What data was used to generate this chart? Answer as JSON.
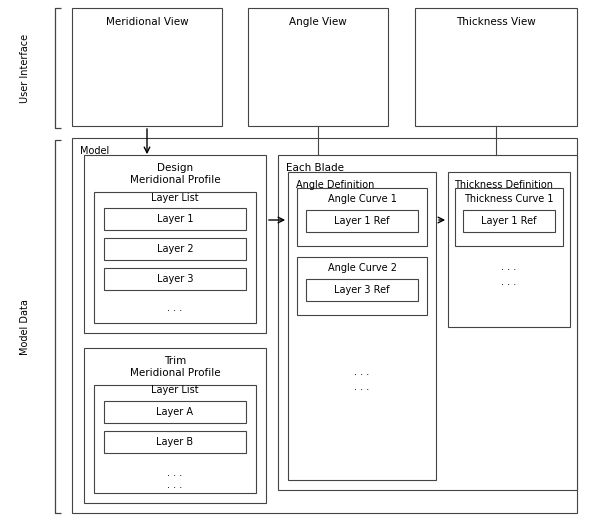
{
  "bg_color": "#ffffff",
  "border_color": "#444444",
  "text_color": "#000000",
  "figsize": [
    6.05,
    5.23
  ],
  "dpi": 100,
  "ui_label": "User Interface",
  "model_data_label": "Model Data",
  "model_label": "Model",
  "each_blade_label": "Each Blade",
  "meridional_view_label": "Meridional View",
  "angle_view_label": "Angle View",
  "thickness_view_label": "Thickness View",
  "design_mp_line1": "Design",
  "design_mp_line2": "Meridional Profile",
  "trim_mp_line1": "Trim",
  "trim_mp_line2": "Meridional Profile",
  "layer_list_label": "Layer List",
  "layer1_label": "Layer 1",
  "layer2_label": "Layer 2",
  "layer3_label": "Layer 3",
  "layerA_label": "Layer A",
  "layerB_label": "Layer B",
  "angle_def_label": "Angle Definition",
  "thickness_def_label": "Thickness Definition",
  "angle_curve1_label": "Angle Curve 1",
  "layer1ref_angle_label": "Layer 1 Ref",
  "angle_curve2_label": "Angle Curve 2",
  "layer3ref_angle_label": "Layer 3 Ref",
  "thickness_curve1_label": "Thickness Curve 1",
  "layer1ref_thickness_label": "Layer 1 Ref",
  "dots": ". . ."
}
